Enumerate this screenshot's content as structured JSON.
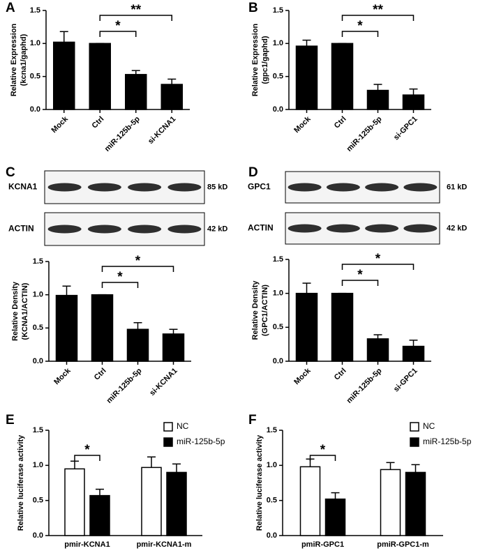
{
  "chart_data": [
    {
      "type": "bar",
      "panel_label": "A",
      "ylabel": [
        "Relative Expression",
        "(kcna1/gaphd)"
      ],
      "categories": [
        "Mock",
        "Ctrl",
        "miR-125b-5p",
        "si-KCNA1"
      ],
      "values": [
        1.02,
        1.0,
        0.53,
        0.38
      ],
      "errors": [
        0.16,
        0,
        0.06,
        0.08
      ],
      "color": "#000000",
      "ylim": [
        0,
        1.5
      ],
      "yticks": [
        {
          "value": 0,
          "label": "0.0"
        },
        0.5,
        {
          "value": 1,
          "label": "1.0"
        },
        1.5
      ],
      "significance": [
        {
          "between": [
            "Ctrl",
            "miR-125b-5p"
          ],
          "label": "*"
        },
        {
          "between": [
            "Ctrl",
            "si-KCNA1"
          ],
          "label": "**"
        }
      ]
    },
    {
      "type": "bar",
      "panel_label": "B",
      "ylabel": [
        "Relative Expression",
        "(gpc1/gaphd)"
      ],
      "categories": [
        "Mock",
        "Ctrl",
        "miR-125b-5p",
        "si-GPC1"
      ],
      "values": [
        0.96,
        1.0,
        0.29,
        0.22
      ],
      "errors": [
        0.09,
        0,
        0.09,
        0.09
      ],
      "color": "#000000",
      "ylim": [
        0,
        1.5
      ],
      "yticks": [
        {
          "value": 0,
          "label": "0.0"
        },
        0.5,
        {
          "value": 1,
          "label": "1.0"
        },
        1.5
      ],
      "significance": [
        {
          "between": [
            "Ctrl",
            "miR-125b-5p"
          ],
          "label": "*"
        },
        {
          "between": [
            "Ctrl",
            "si-GPC1"
          ],
          "label": "**"
        }
      ]
    },
    {
      "type": "bar",
      "panel_label": "C",
      "ylabel": [
        "Relative Density",
        "(KCNA1/ACTIN)"
      ],
      "blot": {
        "rows": [
          {
            "protein": "KCNA1",
            "size": "85 kD"
          },
          {
            "protein": "ACTIN",
            "size": "42 kD"
          }
        ]
      },
      "categories": [
        "Mock",
        "Ctrl",
        "miR-125b-5p",
        "si-KCNA1"
      ],
      "values": [
        0.99,
        1.0,
        0.48,
        0.41
      ],
      "errors": [
        0.14,
        0,
        0.1,
        0.07
      ],
      "color": "#000000",
      "ylim": [
        0,
        1.5
      ],
      "yticks": [
        {
          "value": 0,
          "label": "0.0"
        },
        0.5,
        {
          "value": 1,
          "label": "1.0"
        },
        1.5
      ],
      "significance": [
        {
          "between": [
            "Ctrl",
            "miR-125b-5p"
          ],
          "label": "*"
        },
        {
          "between": [
            "Ctrl",
            "si-KCNA1"
          ],
          "label": "*"
        }
      ]
    },
    {
      "type": "bar",
      "panel_label": "D",
      "ylabel": [
        "Relative Density",
        "(GPC1/ACTIN)"
      ],
      "blot": {
        "rows": [
          {
            "protein": "GPC1",
            "size": "61 kD"
          },
          {
            "protein": "ACTIN",
            "size": "42 kD"
          }
        ]
      },
      "categories": [
        "Mock",
        "Ctrl",
        "miR-125b-5p",
        "si-GPC1"
      ],
      "values": [
        1.0,
        1.0,
        0.33,
        0.22
      ],
      "errors": [
        0.15,
        0,
        0.06,
        0.09
      ],
      "color": "#000000",
      "ylim": [
        0,
        1.5
      ],
      "yticks": [
        {
          "value": 0,
          "label": "0.0"
        },
        0.5,
        {
          "value": 1,
          "label": "1.0"
        },
        1.5
      ],
      "significance": [
        {
          "between": [
            "Ctrl",
            "miR-125b-5p"
          ],
          "label": "*"
        },
        {
          "between": [
            "Ctrl",
            "si-GPC1"
          ],
          "label": "*"
        }
      ]
    },
    {
      "type": "grouped_bar",
      "panel_label": "E",
      "ylabel": [
        "Relative luciferase activity"
      ],
      "categories": [
        "pmir-KCNA1",
        "pmir-KCNA1-m"
      ],
      "series": [
        {
          "name": "NC",
          "color": "#ffffff",
          "values": [
            0.95,
            0.97
          ],
          "errors": [
            0.11,
            0.15
          ]
        },
        {
          "name": "miR-125b-5p",
          "color": "#000000",
          "values": [
            0.57,
            0.9
          ],
          "errors": [
            0.09,
            0.12
          ]
        }
      ],
      "ylim": [
        0,
        1.5
      ],
      "yticks": [
        {
          "value": 0,
          "label": "0.0"
        },
        0.5,
        {
          "value": 1,
          "label": "1.0"
        },
        1.5
      ],
      "significance": [
        {
          "group": "pmir-KCNA1",
          "label": "*"
        }
      ]
    },
    {
      "type": "grouped_bar",
      "panel_label": "F",
      "ylabel": [
        "Relative luciferase activity"
      ],
      "categories": [
        "pmiR-GPC1",
        "pmiR-GPC1-m"
      ],
      "series": [
        {
          "name": "NC",
          "color": "#ffffff",
          "values": [
            0.98,
            0.94
          ],
          "errors": [
            0.11,
            0.1
          ]
        },
        {
          "name": "miR-125b-5p",
          "color": "#000000",
          "values": [
            0.52,
            0.9
          ],
          "errors": [
            0.09,
            0.11
          ]
        }
      ],
      "ylim": [
        0,
        1.5
      ],
      "yticks": [
        {
          "value": 0,
          "label": "0.0"
        },
        0.5,
        {
          "value": 1,
          "label": "1.0"
        },
        1.5
      ],
      "significance": [
        {
          "group": "pmiR-GPC1",
          "label": "*"
        }
      ]
    }
  ]
}
